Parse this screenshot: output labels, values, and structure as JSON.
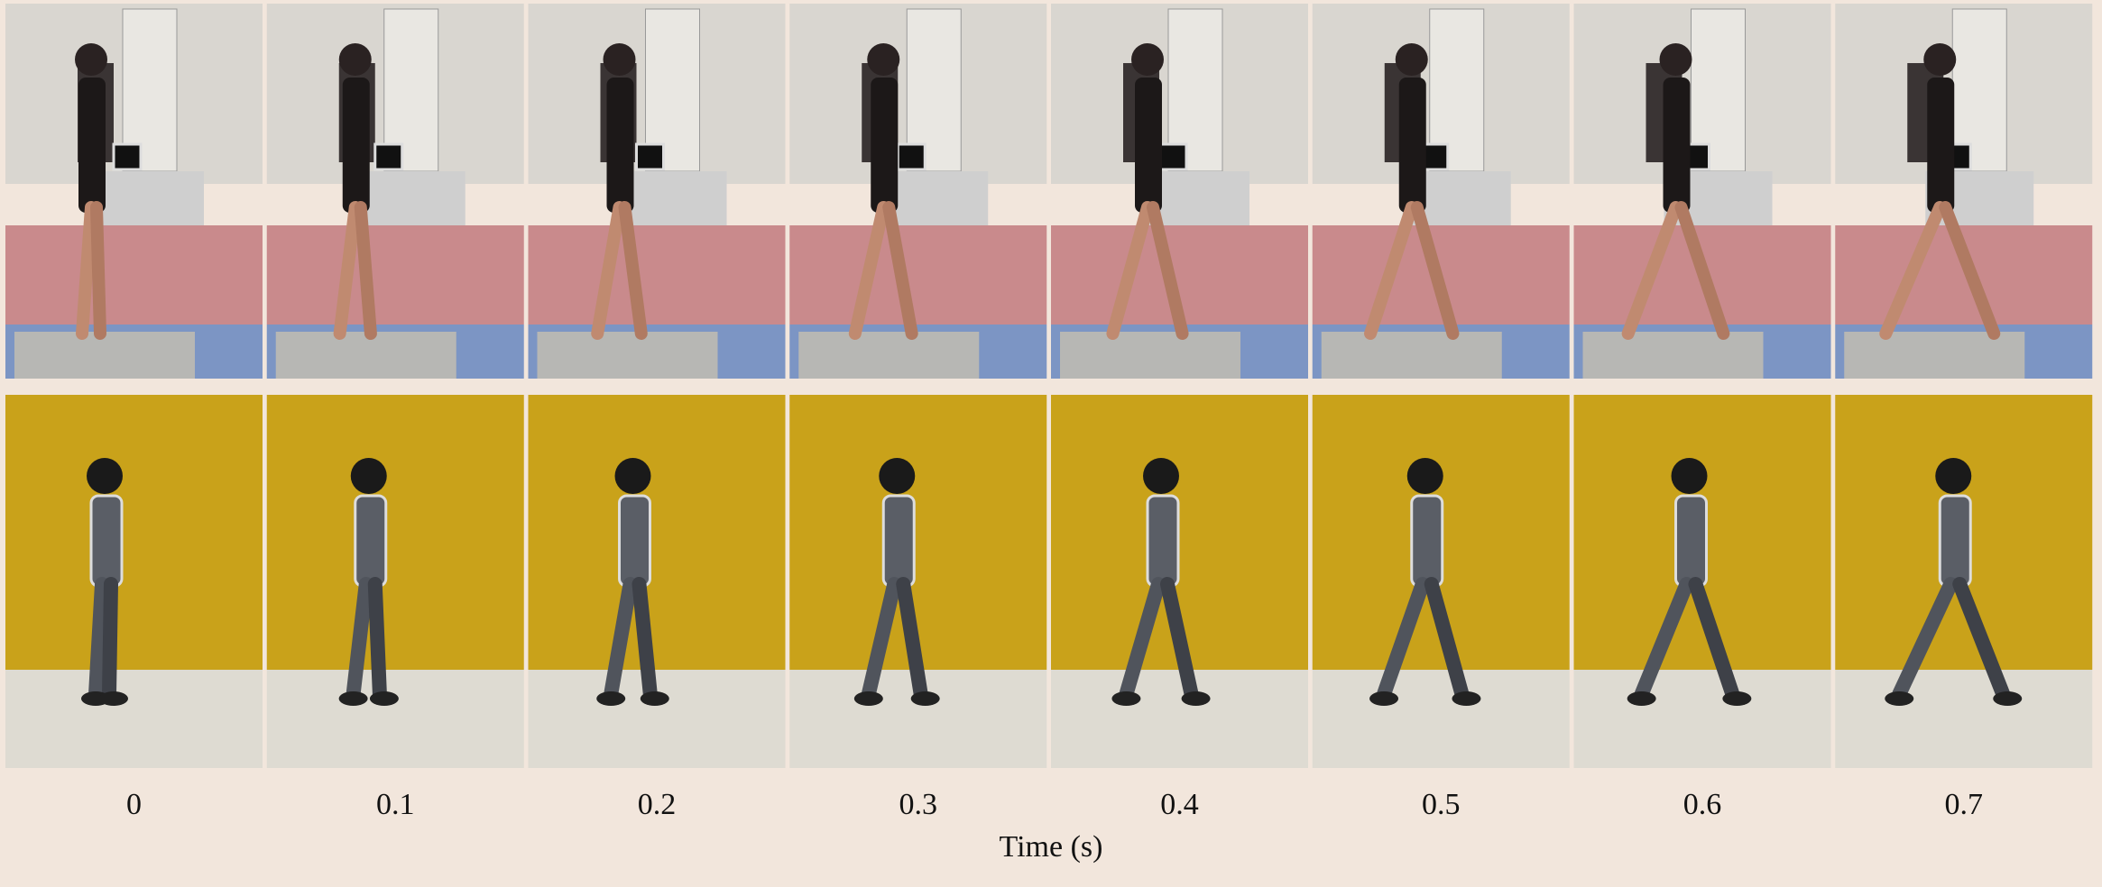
{
  "figure": {
    "time_labels": [
      "0",
      "0.1",
      "0.2",
      "0.3",
      "0.4",
      "0.5",
      "0.6",
      "0.7"
    ],
    "x_axis_label": "Time (s)"
  }
}
